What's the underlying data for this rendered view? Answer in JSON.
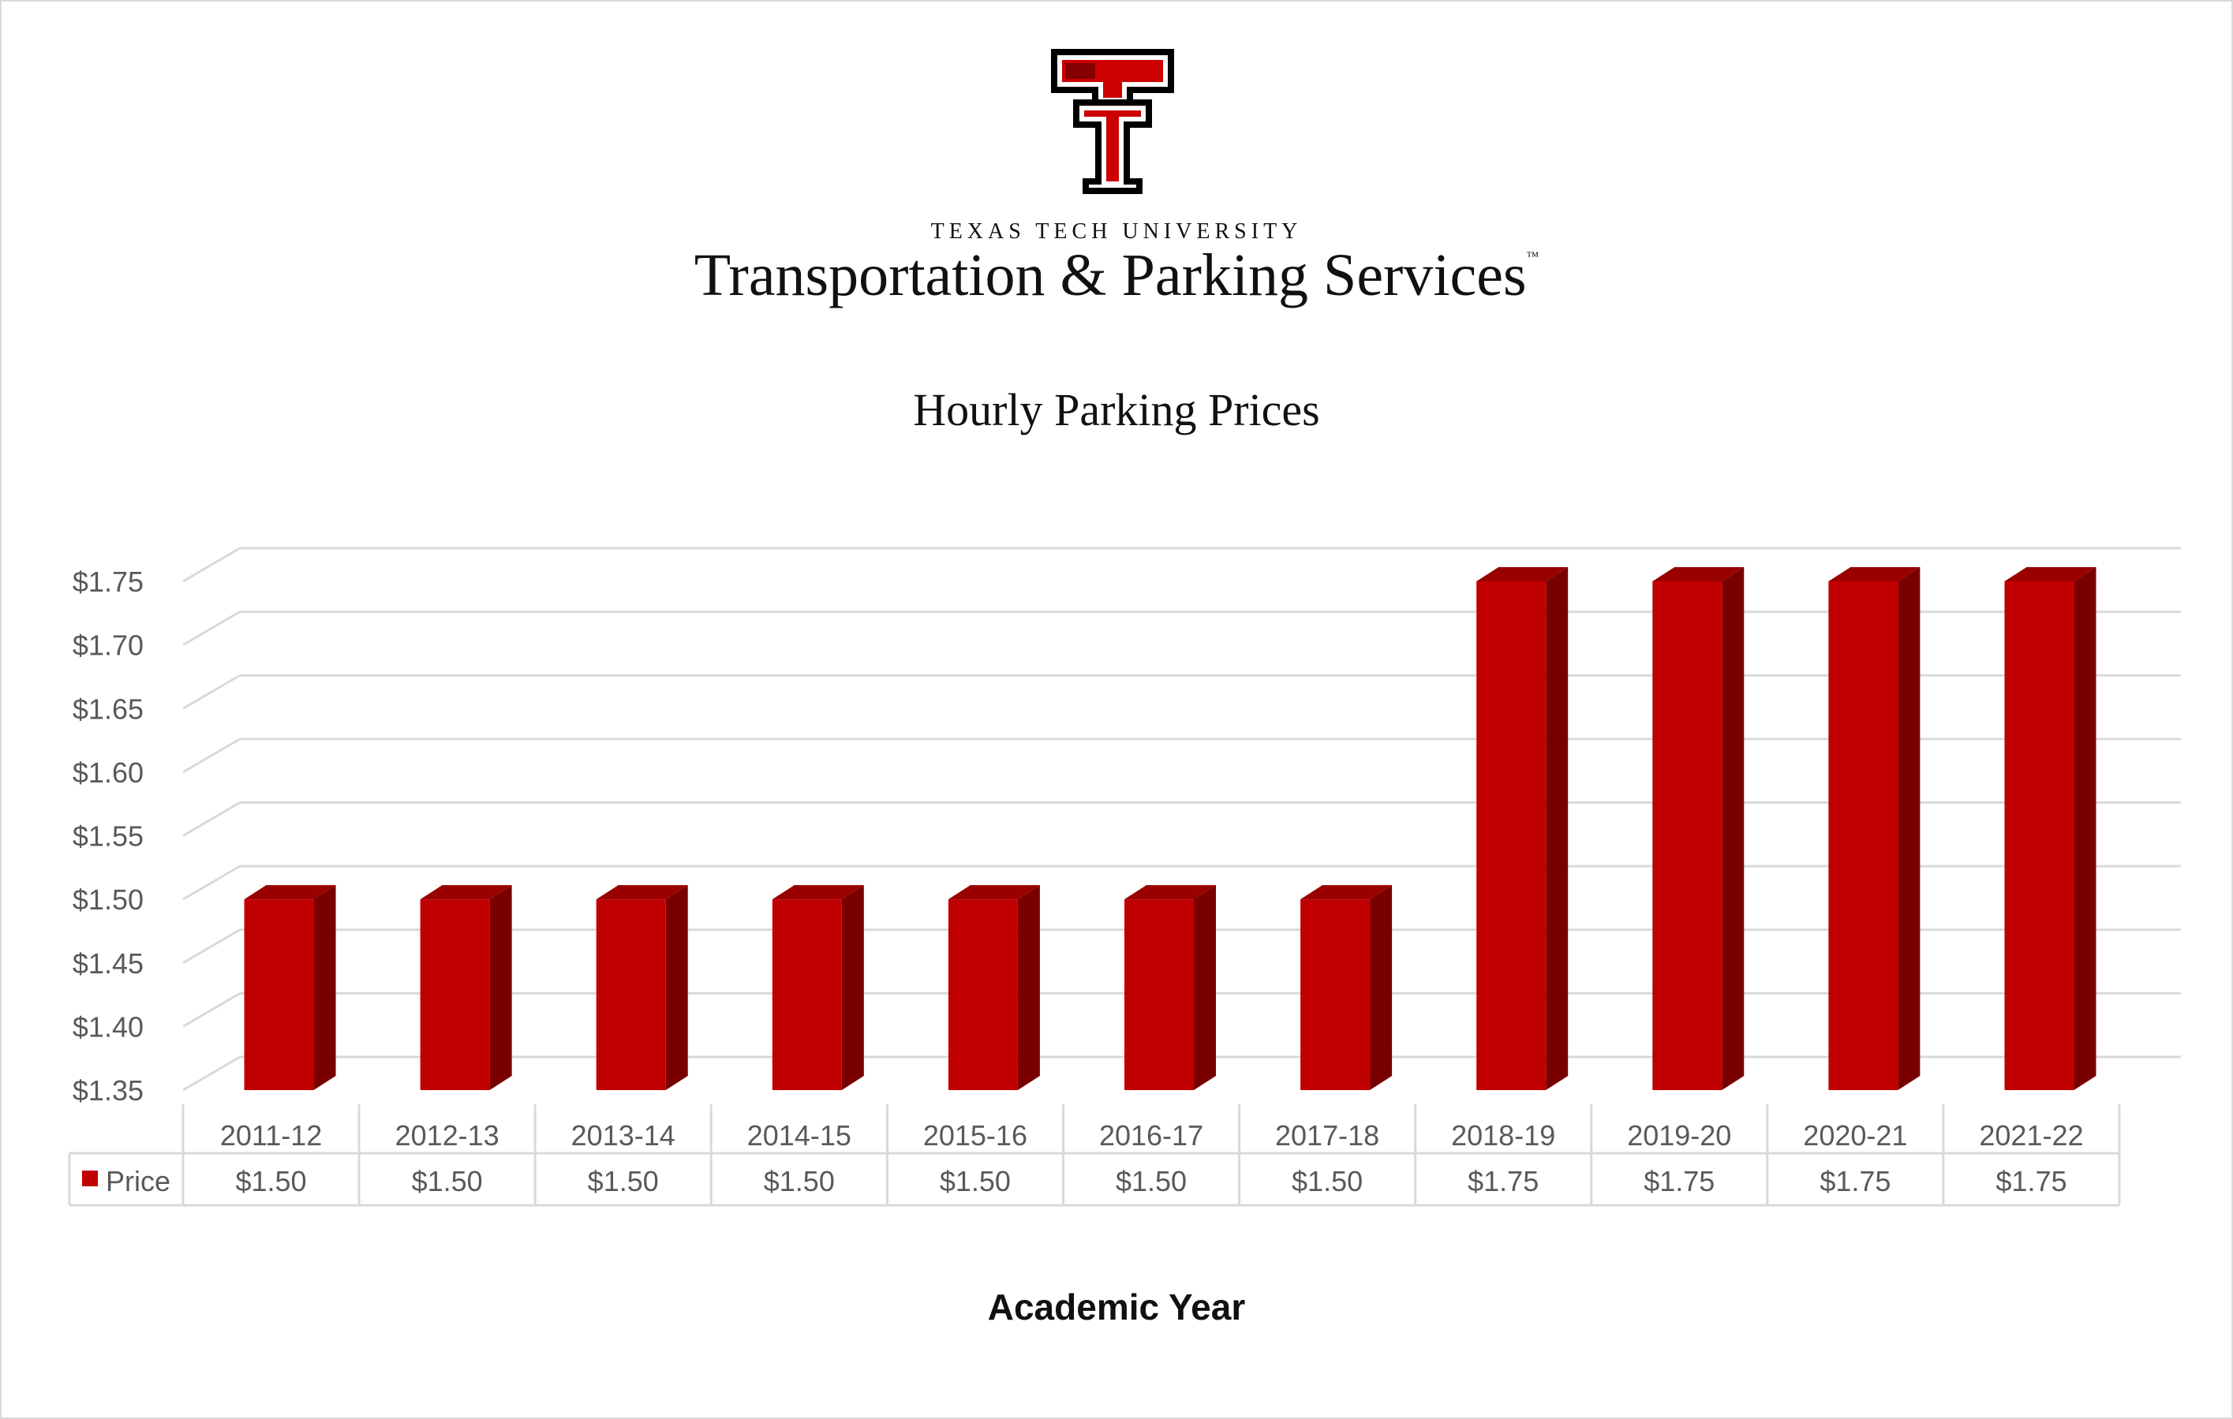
{
  "header": {
    "org_name": "TEXAS TECH UNIVERSITY",
    "dept_name": "Transportation & Parking Services",
    "trademark": "™",
    "logo_icon": "double-t-logo"
  },
  "colors": {
    "bar_front": "#c00000",
    "bar_top": "#9a0000",
    "bar_side": "#7a0000",
    "grid": "#d9d9d9",
    "text": "#595959"
  },
  "chart_data": {
    "type": "bar",
    "title": "Hourly Parking Prices",
    "xlabel": "Academic Year",
    "ylabel": "",
    "categories": [
      "2011-12",
      "2012-13",
      "2013-14",
      "2014-15",
      "2015-16",
      "2016-17",
      "2017-18",
      "2018-19",
      "2019-20",
      "2020-21",
      "2021-22"
    ],
    "series": [
      {
        "name": "Price",
        "values": [
          1.5,
          1.5,
          1.5,
          1.5,
          1.5,
          1.5,
          1.5,
          1.75,
          1.75,
          1.75,
          1.75
        ],
        "labels": [
          "$1.50",
          "$1.50",
          "$1.50",
          "$1.50",
          "$1.50",
          "$1.50",
          "$1.50",
          "$1.75",
          "$1.75",
          "$1.75",
          "$1.75"
        ]
      }
    ],
    "y_ticks": [
      "$1.35",
      "$1.40",
      "$1.45",
      "$1.50",
      "$1.55",
      "$1.60",
      "$1.65",
      "$1.70",
      "$1.75"
    ],
    "y_tick_values": [
      1.35,
      1.4,
      1.45,
      1.5,
      1.55,
      1.6,
      1.65,
      1.7,
      1.75
    ],
    "ylim": [
      1.35,
      1.75
    ],
    "grid": true,
    "legend": "data-table",
    "three_d": true
  }
}
